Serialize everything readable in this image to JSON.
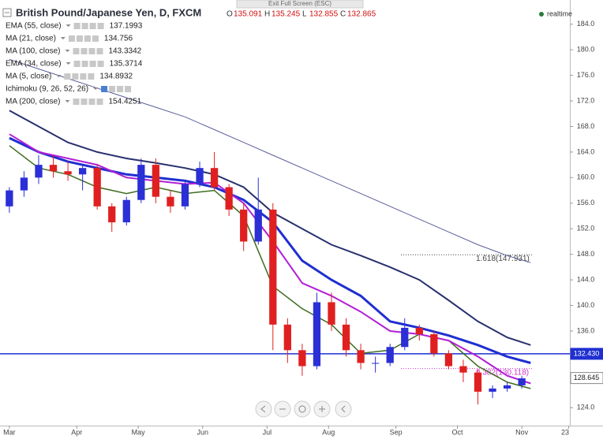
{
  "chart_data": {
    "type": "candlestick",
    "title": "British Pound/Japanese Yen, D, FXCM",
    "ohlc_header": [
      {
        "key": "O",
        "value": 135.091
      },
      {
        "key": "H",
        "value": 135.245
      },
      {
        "key": "L",
        "value": 132.855
      },
      {
        "key": "C",
        "value": 132.865
      }
    ],
    "fullscreen_tab": "Exit Full Screen (ESC)",
    "status": "realtime",
    "up_color": "#2b2fd6",
    "down_color": "#e02020",
    "x": [
      0,
      5,
      10,
      15,
      20,
      25,
      30,
      35,
      40,
      45,
      50,
      55,
      60,
      65,
      70,
      75,
      80,
      85,
      90,
      95,
      100,
      105,
      110,
      115,
      120,
      125,
      130,
      135,
      140,
      145,
      150,
      155,
      160,
      165,
      170,
      175
    ],
    "open": [
      155.5,
      158,
      160,
      162,
      161,
      160.5,
      161.5,
      155.5,
      153,
      156.5,
      162,
      157,
      155.5,
      159,
      161.5,
      158.5,
      155,
      150,
      155,
      137,
      133,
      130.5,
      140.5,
      137,
      133,
      131,
      131,
      133.5,
      136.5,
      135.5,
      132.5,
      130.5,
      129.5,
      126.5,
      127,
      127.5
    ],
    "high": [
      158.5,
      161,
      163.5,
      163.5,
      162.5,
      162,
      162,
      156,
      157,
      163,
      163,
      158,
      159.5,
      162.5,
      164,
      159,
      156,
      160,
      156,
      138,
      134,
      142,
      142,
      138,
      134,
      132,
      134,
      138,
      137,
      136,
      133,
      131.5,
      130,
      127.5,
      128,
      129
    ],
    "low": [
      154.5,
      157,
      159,
      160,
      159.5,
      158,
      155,
      151.5,
      152.5,
      156,
      156,
      154.5,
      155,
      158.5,
      158,
      154,
      148.5,
      149.5,
      133,
      131,
      129,
      130,
      136,
      132,
      130,
      129.5,
      130.5,
      133,
      134.5,
      132,
      130,
      128,
      124.5,
      125.5,
      126.5,
      127
    ],
    "close": [
      158,
      160,
      162,
      161,
      160.5,
      161.5,
      155.5,
      153,
      156.5,
      162,
      157,
      155.5,
      159,
      161.5,
      158.5,
      155,
      150,
      155,
      137,
      133,
      130.5,
      140.5,
      137,
      133,
      131,
      131,
      133.5,
      136.5,
      135.5,
      132.5,
      130.5,
      129.5,
      126.5,
      127,
      127.5,
      128.6
    ],
    "indicator_x": [
      0,
      10,
      20,
      30,
      40,
      50,
      60,
      70,
      80,
      90,
      100,
      110,
      120,
      130,
      140,
      150,
      160,
      170,
      178
    ],
    "indicators": [
      {
        "name": "EMA (55, close)",
        "value": 137.1993,
        "color": "#1f2fd0",
        "width": 3,
        "values": [
          166.2,
          164,
          162.5,
          161.5,
          160.5,
          160,
          159.5,
          158.5,
          156.5,
          153,
          147,
          144,
          141.5,
          137.5,
          136.5,
          135.3,
          133.8,
          132,
          131
        ]
      },
      {
        "name": "MA (21, close)",
        "value": 134.756,
        "color": "#3e6b1f",
        "width": 1.5,
        "values": [
          165,
          161.5,
          160.5,
          158.5,
          157.5,
          158.5,
          157.5,
          158,
          154,
          143,
          139.5,
          137,
          132.5,
          133,
          135.5,
          134.5,
          130.5,
          128,
          127
        ]
      },
      {
        "name": "MA (100, close)",
        "value": 143.3342,
        "color": "#27306e",
        "width": 2,
        "values": [
          170.5,
          168,
          165.5,
          164,
          163,
          162.3,
          161.5,
          160.5,
          158.5,
          154.5,
          152,
          149.5,
          147.8,
          146,
          144,
          140.8,
          137.5,
          135,
          133.8
        ]
      },
      {
        "name": "EMA (34, close)",
        "value": 135.3714,
        "color": "#b21fd6",
        "width": 2,
        "values": [
          166.8,
          164,
          163,
          162,
          160,
          159.5,
          159,
          159.2,
          156,
          150,
          143.5,
          141.5,
          139,
          136,
          135.5,
          134.5,
          132,
          129,
          127.8
        ]
      },
      {
        "name": "MA (5, close)",
        "value": 134.8932,
        "color": "#3344aa"
      },
      {
        "name": "Ichimoku (9, 26, 52, 26)",
        "color": "#aaaaaa"
      },
      {
        "name": "MA (200, close)",
        "value": 154.4251,
        "color": "#5a5f9a",
        "width": 1,
        "values": [
          178.5,
          177,
          175.5,
          174,
          172.5,
          171,
          169.5,
          167.5,
          165.5,
          163.5,
          161.5,
          159.5,
          157.5,
          155.5,
          153.5,
          151.5,
          149.5,
          147.8,
          146.7
        ]
      }
    ],
    "price_lines": [
      {
        "value": 132.43,
        "label": "132.430",
        "color": "#1f2fd0"
      },
      {
        "value": 128.645,
        "label": "128.645",
        "color": "#ffffff"
      }
    ],
    "fib_levels": [
      {
        "value": 147.931,
        "label": "1.618(147.931)",
        "color": "#444444"
      },
      {
        "value": 130.118,
        "label": "0.382(130.118)",
        "color": "#cc33cc"
      }
    ],
    "xlim": [
      -3.2,
      191.4
    ],
    "xticks": [
      {
        "value": 0,
        "label": "Mar"
      },
      {
        "value": 23,
        "label": "Apr"
      },
      {
        "value": 44,
        "label": "May"
      },
      {
        "value": 66,
        "label": "Jun"
      },
      {
        "value": 88,
        "label": "Jul"
      },
      {
        "value": 109,
        "label": "Aug"
      },
      {
        "value": 132,
        "label": "Sep"
      },
      {
        "value": 153,
        "label": "Oct"
      },
      {
        "value": 175,
        "label": "Nov"
      },
      {
        "value": 191,
        "label": "23"
      }
    ],
    "ylim": [
      121.2,
      186.8
    ],
    "yticks": [
      {
        "value": 124,
        "label": "124.0"
      },
      {
        "value": 128,
        "label": "128.0"
      },
      {
        "value": 132,
        "label": "132.0"
      },
      {
        "value": 136,
        "label": "136.0"
      },
      {
        "value": 140,
        "label": "140.0"
      },
      {
        "value": 144,
        "label": "144.0"
      },
      {
        "value": 148,
        "label": "148.0"
      },
      {
        "value": 152,
        "label": "152.0"
      },
      {
        "value": 156,
        "label": "156.0"
      },
      {
        "value": 160,
        "label": "160.0"
      },
      {
        "value": 164,
        "label": "164.0"
      },
      {
        "value": 168,
        "label": "168.0"
      },
      {
        "value": 172,
        "label": "172.0"
      },
      {
        "value": 176,
        "label": "176.0"
      },
      {
        "value": 180,
        "label": "180.0"
      },
      {
        "value": 184,
        "label": "184.0"
      }
    ]
  }
}
